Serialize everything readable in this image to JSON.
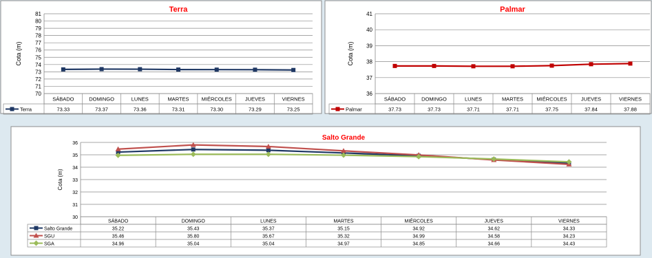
{
  "chart_data": [
    {
      "type": "line",
      "title": "Terra",
      "ylabel": "Cota (m)",
      "xlabel": "",
      "ylim": [
        70,
        81
      ],
      "ystep": 1,
      "categories": [
        "SÁBADO",
        "DOMINGO",
        "LUNES",
        "MARTES",
        "MIÉRCOLES",
        "JUEVES",
        "VIERNES"
      ],
      "series": [
        {
          "name": "Terra",
          "values": [
            73.33,
            73.37,
            73.36,
            73.31,
            73.3,
            73.29,
            73.25
          ],
          "labels": [
            "73.33",
            "73.37",
            "73.36",
            "73.31",
            "73.30",
            "73.29",
            "73.25"
          ],
          "color": "#1f3864",
          "marker": "square"
        }
      ],
      "legend": "data-table",
      "grid": true
    },
    {
      "type": "line",
      "title": "Palmar",
      "ylabel": "Cota (m)",
      "xlabel": "",
      "ylim": [
        36,
        41
      ],
      "ystep": 1,
      "categories": [
        "SÁBADO",
        "DOMINGO",
        "LUNES",
        "MARTES",
        "MIÉRCOLES",
        "JUEVES",
        "VIERNES"
      ],
      "series": [
        {
          "name": "Palmar",
          "values": [
            37.73,
            37.73,
            37.71,
            37.71,
            37.75,
            37.84,
            37.88
          ],
          "labels": [
            "37.73",
            "37.73",
            "37.71",
            "37.71",
            "37.75",
            "37.84",
            "37.88"
          ],
          "color": "#c00000",
          "marker": "square"
        }
      ],
      "legend": "data-table",
      "grid": true
    },
    {
      "type": "line",
      "title": "Salto Grande",
      "ylabel": "Cota (m)",
      "xlabel": "",
      "ylim": [
        30,
        36
      ],
      "ystep": 1,
      "categories": [
        "SÁBADO",
        "DOMINGO",
        "LUNES",
        "MARTES",
        "MIÉRCOLES",
        "JUEVES",
        "VIERNES"
      ],
      "series": [
        {
          "name": "Salto Grande",
          "values": [
            35.22,
            35.43,
            35.37,
            35.15,
            34.92,
            34.62,
            34.33
          ],
          "labels": [
            "35.22",
            "35.43",
            "35.37",
            "35.15",
            "34.92",
            "34.62",
            "34.33"
          ],
          "color": "#1f3864",
          "marker": "square"
        },
        {
          "name": "SGU",
          "values": [
            35.46,
            35.8,
            35.67,
            35.32,
            34.99,
            34.58,
            34.23
          ],
          "labels": [
            "35.46",
            "35.80",
            "35.67",
            "35.32",
            "34.99",
            "34.58",
            "34.23"
          ],
          "color": "#c0504d",
          "marker": "triangle"
        },
        {
          "name": "SGA",
          "values": [
            34.96,
            35.04,
            35.04,
            34.97,
            34.85,
            34.66,
            34.43
          ],
          "labels": [
            "34.96",
            "35.04",
            "35.04",
            "34.97",
            "34.85",
            "34.66",
            "34.43"
          ],
          "color": "#9bbb59",
          "marker": "diamond"
        }
      ],
      "legend": "data-table",
      "grid": true
    }
  ]
}
